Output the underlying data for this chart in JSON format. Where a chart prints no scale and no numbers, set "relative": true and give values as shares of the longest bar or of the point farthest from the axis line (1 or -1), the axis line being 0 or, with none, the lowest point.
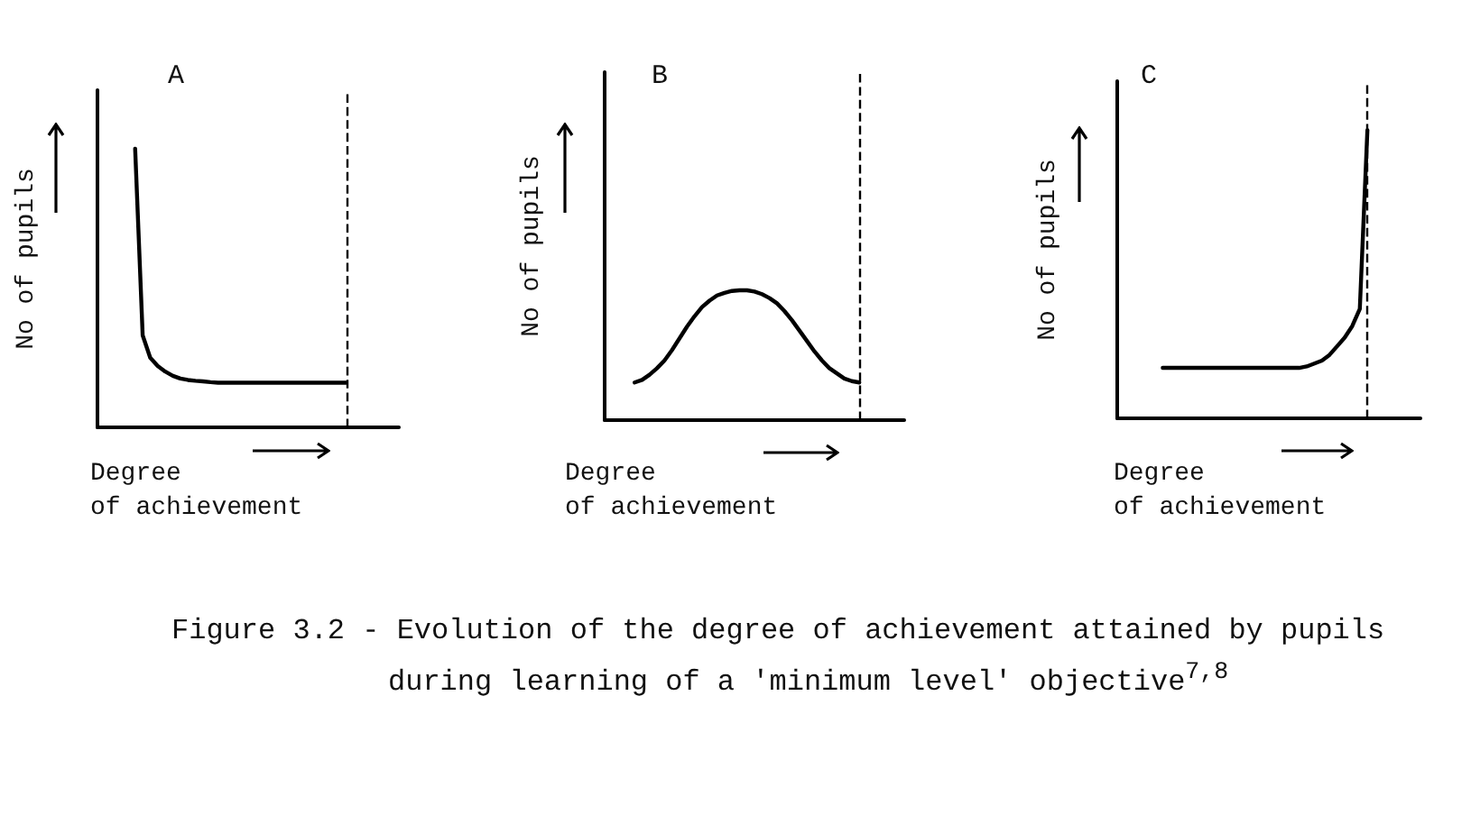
{
  "chart_data": [
    {
      "type": "line",
      "title": "A",
      "xlabel": "Degree\nof achievement",
      "ylabel": "No of pupils",
      "relative": true,
      "grid": false,
      "line_style": "solid",
      "categories": [
        null,
        null,
        null,
        null,
        null,
        null,
        null,
        null,
        null,
        null,
        null,
        null,
        null,
        null,
        null,
        null,
        null,
        null,
        null,
        null,
        null,
        null,
        null,
        null,
        null,
        null,
        null,
        null,
        null,
        null,
        null,
        null,
        null,
        null,
        null,
        null,
        null,
        null,
        null,
        null,
        null
      ],
      "series": [
        {
          "color": "#000000",
          "values": [
            null,
            null,
            null,
            null,
            null,
            1,
            0.33,
            0.25,
            0.22,
            0.2,
            0.185,
            0.175,
            0.17,
            0.167,
            0.165,
            0.162,
            0.16,
            0.16,
            0.16,
            0.16,
            0.16,
            0.16,
            0.16,
            0.16,
            0.16,
            0.16,
            0.16,
            0.16,
            0.16,
            0.16,
            0.16,
            0.16,
            0.16,
            0.16,
            null,
            null,
            null,
            null,
            null,
            null,
            null
          ]
        }
      ],
      "annotations": [
        "Figure 3.2 - Evolution of the degree of achievement attained by pupils during learning of a 'minimum level' objective$^{7,8}$"
      ]
    },
    {
      "type": "line",
      "title": "B",
      "xlabel": "Degree\nof achievement",
      "ylabel": "No of pupils",
      "relative": true,
      "grid": false,
      "line_style": "solid",
      "categories": [
        null,
        null,
        null,
        null,
        null,
        null,
        null,
        null,
        null,
        null,
        null,
        null,
        null,
        null,
        null,
        null,
        null,
        null,
        null,
        null,
        null,
        null,
        null,
        null,
        null,
        null,
        null,
        null,
        null,
        null,
        null,
        null,
        null,
        null,
        null,
        null,
        null,
        null,
        null,
        null,
        null
      ],
      "series": [
        {
          "color": "#000000",
          "values": [
            null,
            null,
            null,
            null,
            0.29,
            0.31,
            0.35,
            0.4,
            0.46,
            0.54,
            0.63,
            0.72,
            0.8,
            0.87,
            0.92,
            0.96,
            0.98,
            0.995,
            1,
            1,
            0.99,
            0.97,
            0.94,
            0.9,
            0.84,
            0.77,
            0.69,
            0.61,
            0.53,
            0.46,
            0.4,
            0.36,
            0.32,
            0.3,
            0.29,
            null,
            null,
            null,
            null,
            null,
            null
          ]
        }
      ]
    },
    {
      "type": "line",
      "title": "C",
      "xlabel": "Degree\nof achievement",
      "ylabel": "No of pupils",
      "relative": true,
      "grid": false,
      "line_style": "solid",
      "categories": [
        null,
        null,
        null,
        null,
        null,
        null,
        null,
        null,
        null,
        null,
        null,
        null,
        null,
        null,
        null,
        null,
        null,
        null,
        null,
        null,
        null,
        null,
        null,
        null,
        null,
        null,
        null,
        null,
        null,
        null,
        null,
        null,
        null,
        null,
        null,
        null,
        null,
        null,
        null,
        null,
        null
      ],
      "series": [
        {
          "color": "#000000",
          "values": [
            null,
            null,
            null,
            null,
            null,
            null,
            0.175,
            0.175,
            0.175,
            0.175,
            0.175,
            0.175,
            0.175,
            0.175,
            0.175,
            0.175,
            0.175,
            0.175,
            0.175,
            0.175,
            0.175,
            0.175,
            0.175,
            0.175,
            0.175,
            0.18,
            0.19,
            0.2,
            0.22,
            0.25,
            0.28,
            0.32,
            0.38,
            1,
            null,
            null,
            null,
            null,
            null,
            null,
            null
          ]
        }
      ]
    }
  ]
}
